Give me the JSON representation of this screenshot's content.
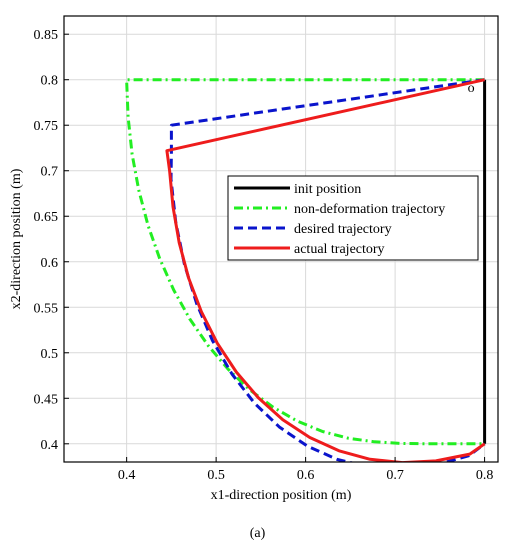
{
  "caption": "(a)",
  "chart_data": {
    "type": "line",
    "xlabel": "x1-direction position (m)",
    "ylabel": "x2-direction position (m)",
    "xlim": [
      0.33,
      0.815
    ],
    "ylim": [
      0.38,
      0.87
    ],
    "xticks": [
      "0.4",
      "0.5",
      "0.6",
      "0.7",
      "0.8"
    ],
    "yticks": [
      "0.4",
      "0.45",
      "0.5",
      "0.55",
      "0.6",
      "0.65",
      "0.7",
      "0.75",
      "0.8",
      "0.85"
    ],
    "grid": true,
    "legend_position": "right-middle",
    "annotation": {
      "text": "o",
      "x": 0.795,
      "y": 0.792
    },
    "series": [
      {
        "name": "init position",
        "color": "#000000",
        "style": "solid",
        "x": [
          0.8,
          0.8
        ],
        "y": [
          0.4,
          0.8
        ]
      },
      {
        "name": "non-deformation trajectory",
        "color": "#22ee22",
        "style": "dashdot",
        "x": [
          0.8,
          0.4,
          0.4,
          0.4016,
          0.4061,
          0.4136,
          0.4239,
          0.4369,
          0.4526,
          0.4706,
          0.491,
          0.5134,
          0.5376,
          0.5634,
          0.5905,
          0.6186,
          0.6475,
          0.6768,
          0.7061,
          0.7352,
          0.7638,
          0.7916,
          0.8
        ],
        "y": [
          0.8,
          0.8,
          0.8,
          0.759,
          0.7182,
          0.6785,
          0.6401,
          0.6035,
          0.569,
          0.5371,
          0.508,
          0.482,
          0.4593,
          0.4403,
          0.425,
          0.4136,
          0.4062,
          0.4022,
          0.4004,
          0.4,
          0.4,
          0.4,
          0.4
        ]
      },
      {
        "name": "desired trajectory",
        "color": "#0a14cc",
        "style": "dashed",
        "x": [
          0.8,
          0.45,
          0.45,
          0.4496,
          0.4549,
          0.4645,
          0.4783,
          0.496,
          0.5176,
          0.5427,
          0.571,
          0.6021,
          0.6356,
          0.6709,
          0.7075,
          0.7449,
          0.7826,
          0.8
        ],
        "y": [
          0.8,
          0.75,
          0.72,
          0.6906,
          0.6431,
          0.5973,
          0.5539,
          0.5134,
          0.4768,
          0.4448,
          0.4181,
          0.3974,
          0.3828,
          0.3745,
          0.3725,
          0.3766,
          0.3869,
          0.4
        ]
      },
      {
        "name": "actual trajectory",
        "color": "#ee1c1c",
        "style": "solid",
        "x": [
          0.8,
          0.445,
          0.448,
          0.4518,
          0.4587,
          0.4692,
          0.4834,
          0.5012,
          0.5225,
          0.547,
          0.5745,
          0.6047,
          0.6373,
          0.672,
          0.7082,
          0.7456,
          0.7835,
          0.8
        ],
        "y": [
          0.8,
          0.722,
          0.7,
          0.6605,
          0.6209,
          0.5822,
          0.5453,
          0.5106,
          0.4789,
          0.4507,
          0.4265,
          0.4069,
          0.3923,
          0.383,
          0.3793,
          0.3812,
          0.3887,
          0.4
        ]
      }
    ]
  }
}
